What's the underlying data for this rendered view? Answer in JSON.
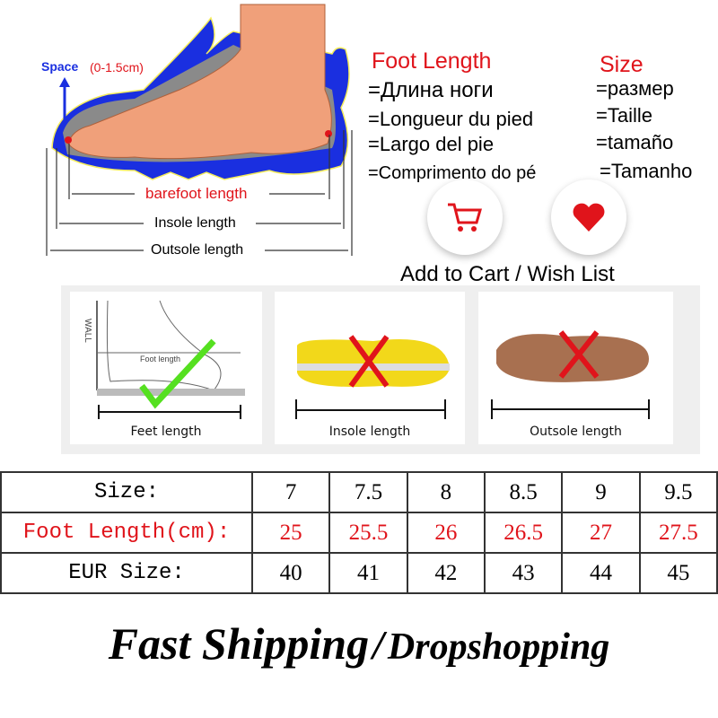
{
  "diagram": {
    "space_label": "Space",
    "space_range": "(0-1.5cm)",
    "barefoot": "barefoot length",
    "insole": "Insole length",
    "outsole": "Outsole length"
  },
  "foot_length": {
    "title": "Foot Length",
    "translations": [
      "=Длина ноги",
      "=Longueur du pied",
      "=Largo del pie",
      "=Comprimento do pé"
    ]
  },
  "size": {
    "title": "Size",
    "translations": [
      "=размер",
      "=Taille",
      "=tamaño",
      "=Tamanho"
    ]
  },
  "actions": {
    "cart_icon": "shopping-cart-icon",
    "wish_icon": "heart-icon",
    "label": "Add to Cart / Wish List"
  },
  "methods": [
    {
      "label": "Feet length",
      "wall": "WALL",
      "foot_length": "Foot length",
      "mark": "check"
    },
    {
      "label": "Insole length",
      "mark": "cross"
    },
    {
      "label": "Outsole length",
      "mark": "cross"
    }
  ],
  "table": {
    "rows": [
      {
        "header": "Size:",
        "values": [
          "7",
          "7.5",
          "8",
          "8.5",
          "9",
          "9.5"
        ]
      },
      {
        "header": "Foot Length(cm):",
        "values": [
          "25",
          "25.5",
          "26",
          "26.5",
          "27",
          "27.5"
        ]
      },
      {
        "header": "EUR Size:",
        "values": [
          "40",
          "41",
          "42",
          "43",
          "44",
          "45"
        ]
      }
    ]
  },
  "shipping": {
    "left": "Fast Shipping",
    "sep": "/",
    "right": "Dropshopping"
  },
  "colors": {
    "red": "#e0141b",
    "blue": "#1a2fe0",
    "skin": "#f0a07a",
    "green": "#55e020"
  }
}
